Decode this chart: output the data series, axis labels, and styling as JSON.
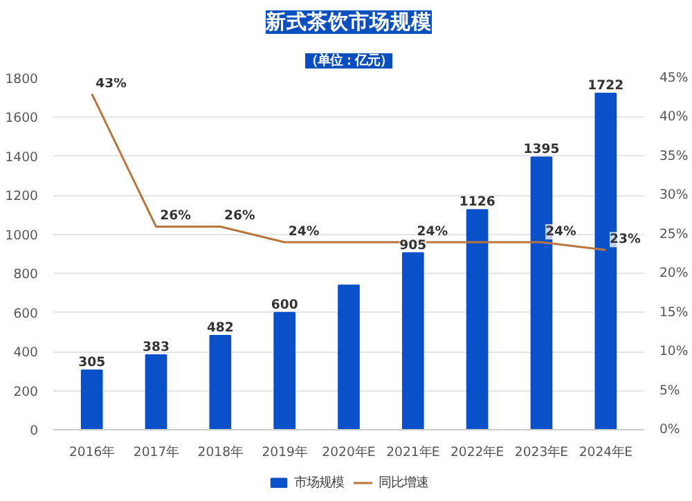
{
  "chart_data": {
    "type": "bar",
    "title": "新式茶饮市场规模",
    "subtitle": "（单位：亿元）",
    "categories": [
      "2016年",
      "2017年",
      "2018年",
      "2019年",
      "2020年E",
      "2021年E",
      "2022年E",
      "2023年E",
      "2024年E"
    ],
    "series": [
      {
        "name": "市场规模",
        "color": "#0a50c8",
        "values": [
          305,
          383,
          482,
          600,
          740,
          905,
          1126,
          1395,
          1722
        ],
        "value_labels": [
          "305",
          "383",
          "482",
          "600",
          null,
          "905",
          "1126",
          "1395",
          "1722"
        ]
      },
      {
        "name": "同比增速",
        "type": "line",
        "axis": "y2",
        "color": "#b8763e",
        "values": [
          43,
          26,
          26,
          24,
          24,
          24,
          24,
          24,
          23
        ],
        "value_labels": [
          "43%",
          "26%",
          "26%",
          "24%",
          null,
          "24%",
          null,
          "24%",
          "23%"
        ]
      }
    ],
    "ylim": [
      0,
      1800
    ],
    "yticks": [
      0,
      200,
      400,
      600,
      800,
      1000,
      1200,
      1400,
      1600,
      1800
    ],
    "y2lim": [
      0,
      45
    ],
    "y2ticks": [
      {
        "value": 0,
        "label": "0%"
      },
      {
        "value": 5,
        "label": "5%"
      },
      {
        "value": 10,
        "label": "10%"
      },
      {
        "value": 15,
        "label": "15%"
      },
      {
        "value": 20,
        "label": "20%"
      },
      {
        "value": 25,
        "label": "25%"
      },
      {
        "value": 30,
        "label": "30%"
      },
      {
        "value": 35,
        "label": "35%"
      },
      {
        "value": 40,
        "label": "40%"
      },
      {
        "value": 45,
        "label": "45%"
      }
    ],
    "grid": "y",
    "legend": "bottom"
  }
}
